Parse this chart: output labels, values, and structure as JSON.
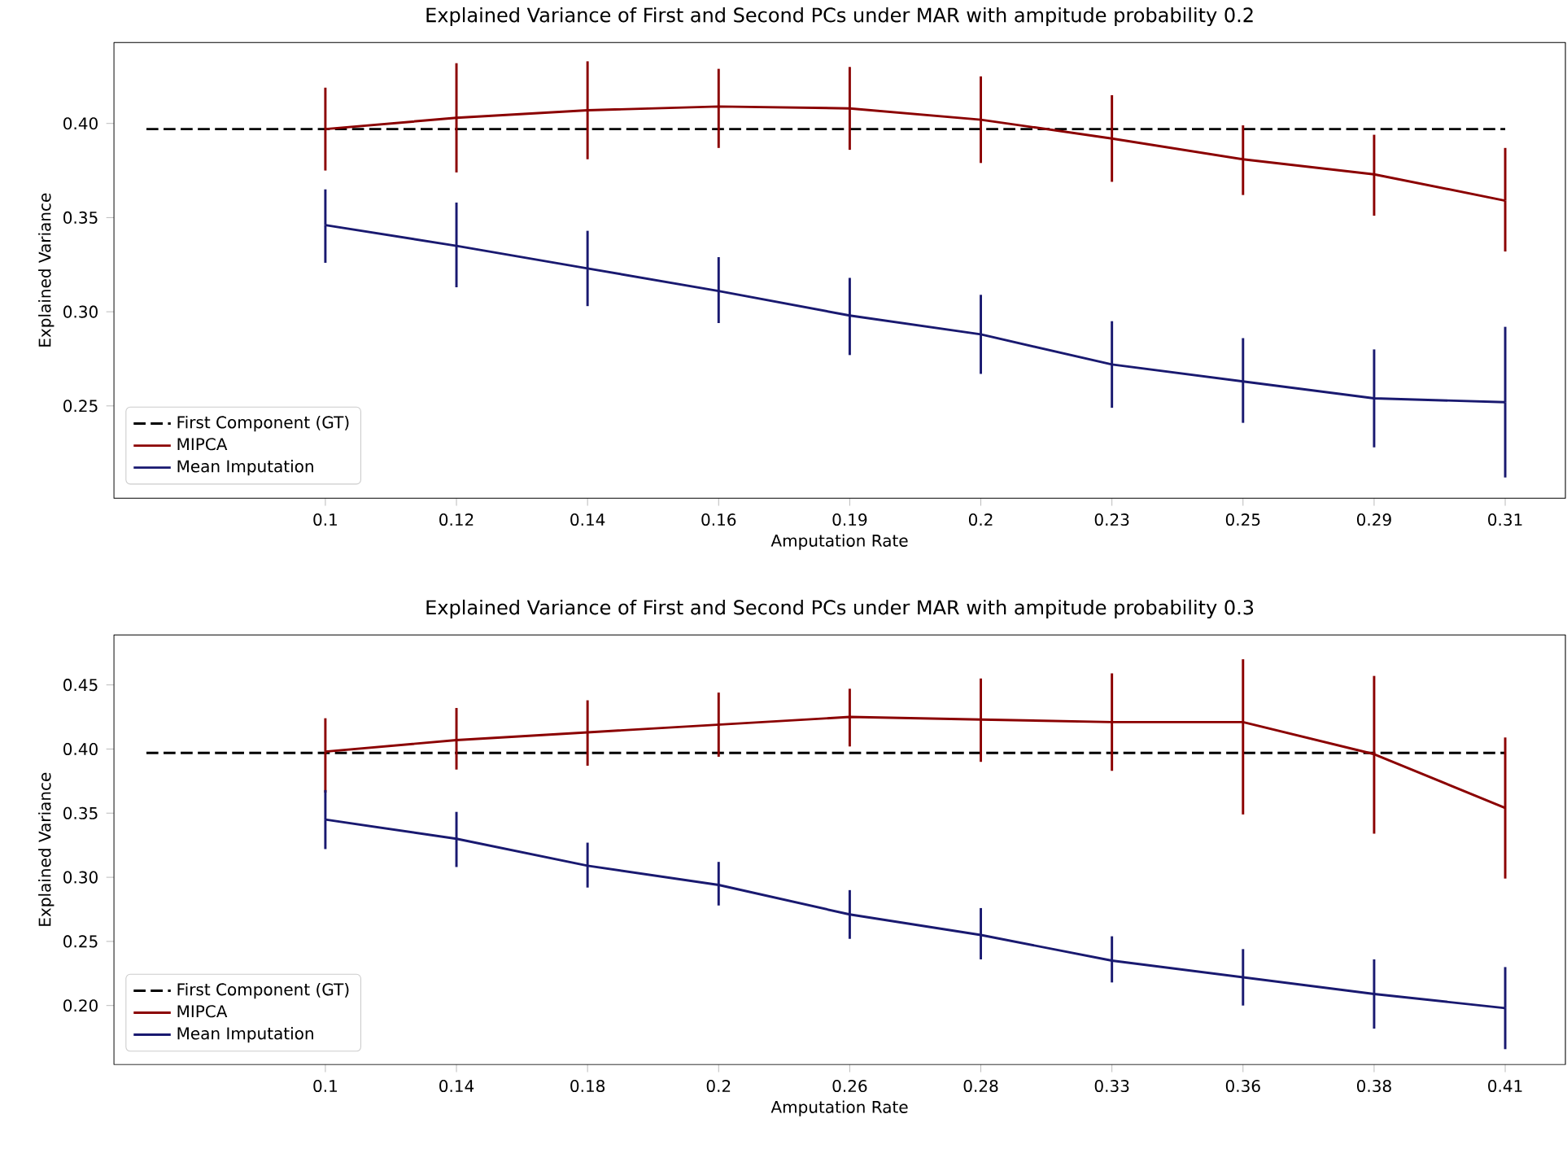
{
  "chart_data": [
    {
      "type": "line",
      "title": "Explained Variance of First and Second PCs under MAR with ampitude probability 0.2",
      "xlabel": "Amputation Rate",
      "ylabel": "Explained Variance",
      "categories": [
        "0.1",
        "0.12",
        "0.14",
        "0.16",
        "0.19",
        "0.2",
        "0.23",
        "0.25",
        "0.29",
        "0.31"
      ],
      "ref_lines": [
        {
          "axis": "y",
          "value": 0.397,
          "label": "First Component (GT)",
          "color": "#000000",
          "line_style": "dashed"
        }
      ],
      "series": [
        {
          "name": "MIPCA",
          "color": "#8b0000",
          "values": [
            0.397,
            0.403,
            0.407,
            0.409,
            0.408,
            0.402,
            0.392,
            0.381,
            0.373,
            0.359
          ],
          "errors": [
            [
              0.375,
              0.419
            ],
            [
              0.374,
              0.432
            ],
            [
              0.381,
              0.433
            ],
            [
              0.387,
              0.429
            ],
            [
              0.386,
              0.43
            ],
            [
              0.379,
              0.425
            ],
            [
              0.369,
              0.415
            ],
            [
              0.362,
              0.399
            ],
            [
              0.351,
              0.394
            ],
            [
              0.332,
              0.387
            ]
          ]
        },
        {
          "name": "Mean Imputation",
          "color": "#191970",
          "values": [
            0.346,
            0.335,
            0.323,
            0.311,
            0.298,
            0.288,
            0.272,
            0.263,
            0.254,
            0.252
          ],
          "errors": [
            [
              0.326,
              0.365
            ],
            [
              0.313,
              0.358
            ],
            [
              0.303,
              0.343
            ],
            [
              0.294,
              0.329
            ],
            [
              0.277,
              0.318
            ],
            [
              0.267,
              0.309
            ],
            [
              0.249,
              0.295
            ],
            [
              0.241,
              0.286
            ],
            [
              0.228,
              0.28
            ],
            [
              0.212,
              0.292
            ]
          ]
        }
      ],
      "ylim": [
        0.201,
        0.443
      ],
      "yticks": [
        0.25,
        {
          "value": 0.3,
          "label": "0.30"
        },
        0.35,
        {
          "value": 0.4,
          "label": "0.40"
        }
      ],
      "legend": "bottom left",
      "marker": "none"
    },
    {
      "type": "line",
      "title": "Explained Variance of First and Second PCs under MAR with ampitude probability 0.3",
      "xlabel": "Amputation Rate",
      "ylabel": "Explained Variance",
      "categories": [
        "0.1",
        "0.14",
        "0.18",
        "0.2",
        "0.26",
        "0.28",
        "0.33",
        "0.36",
        "0.38",
        "0.41"
      ],
      "ref_lines": [
        {
          "axis": "y",
          "value": 0.397,
          "label": "First Component (GT)",
          "color": "#000000",
          "line_style": "dashed"
        }
      ],
      "series": [
        {
          "name": "MIPCA",
          "color": "#8b0000",
          "values": [
            0.398,
            0.407,
            0.413,
            0.419,
            0.425,
            0.423,
            0.421,
            0.421,
            0.396,
            0.354
          ],
          "errors": [
            [
              0.366,
              0.424
            ],
            [
              0.384,
              0.432
            ],
            [
              0.387,
              0.438
            ],
            [
              0.394,
              0.444
            ],
            [
              0.402,
              0.447
            ],
            [
              0.39,
              0.455
            ],
            [
              0.383,
              0.459
            ],
            [
              0.349,
              0.47
            ],
            [
              0.334,
              0.457
            ],
            [
              0.299,
              0.409
            ]
          ]
        },
        {
          "name": "Mean Imputation",
          "color": "#191970",
          "values": [
            0.345,
            0.33,
            0.309,
            0.294,
            0.271,
            0.255,
            0.235,
            0.222,
            0.209,
            0.198
          ],
          "errors": [
            [
              0.322,
              0.368
            ],
            [
              0.308,
              0.351
            ],
            [
              0.292,
              0.327
            ],
            [
              0.278,
              0.312
            ],
            [
              0.252,
              0.29
            ],
            [
              0.236,
              0.276
            ],
            [
              0.218,
              0.254
            ],
            [
              0.2,
              0.244
            ],
            [
              0.182,
              0.236
            ],
            [
              0.166,
              0.23
            ]
          ]
        }
      ],
      "ylim": [
        0.154,
        0.489
      ],
      "yticks": [
        {
          "value": 0.2,
          "label": "0.20"
        },
        0.25,
        {
          "value": 0.3,
          "label": "0.30"
        },
        0.35,
        {
          "value": 0.4,
          "label": "0.40"
        },
        0.45
      ],
      "legend": "bottom left",
      "marker": "none"
    }
  ]
}
